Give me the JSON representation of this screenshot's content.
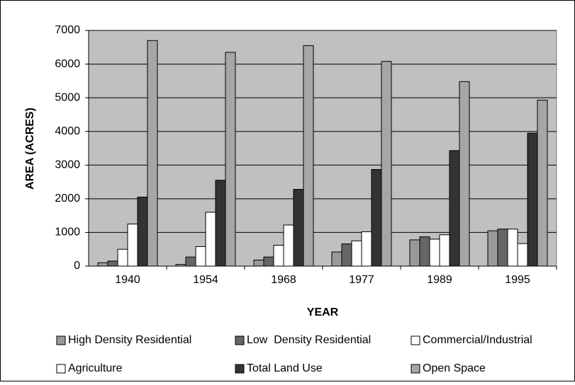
{
  "chart_data": {
    "type": "bar",
    "x_label": "YEAR",
    "y_label": "AREA (ACRES)",
    "categories": [
      "1940",
      "1954",
      "1968",
      "1977",
      "1989",
      "1995"
    ],
    "series": [
      {
        "name": "High Density Residential",
        "color": "#999999",
        "values": [
          100,
          50,
          180,
          420,
          780,
          1050
        ]
      },
      {
        "name": "Low  Density Residential",
        "color": "#666666",
        "values": [
          150,
          270,
          270,
          660,
          870,
          1100
        ]
      },
      {
        "name": "Commercial/Industrial",
        "color": "#ffffff",
        "values": [
          500,
          580,
          620,
          750,
          800,
          1100
        ]
      },
      {
        "name": "Agriculture",
        "color": "#ffffff",
        "values": [
          1250,
          1600,
          1220,
          1020,
          930,
          670
        ]
      },
      {
        "name": "Total Land Use",
        "color": "#333333",
        "values": [
          2050,
          2550,
          2280,
          2870,
          3430,
          3950
        ]
      },
      {
        "name": "Open Space",
        "color": "#a6a6a6",
        "values": [
          6700,
          6350,
          6550,
          6080,
          5480,
          4930
        ]
      }
    ],
    "ylim": [
      0,
      7000
    ],
    "yticks": [
      0,
      1000,
      2000,
      3000,
      4000,
      5000,
      6000,
      7000
    ],
    "grid": true,
    "plot_background": "#c0c0c0",
    "legend": "bottom"
  }
}
